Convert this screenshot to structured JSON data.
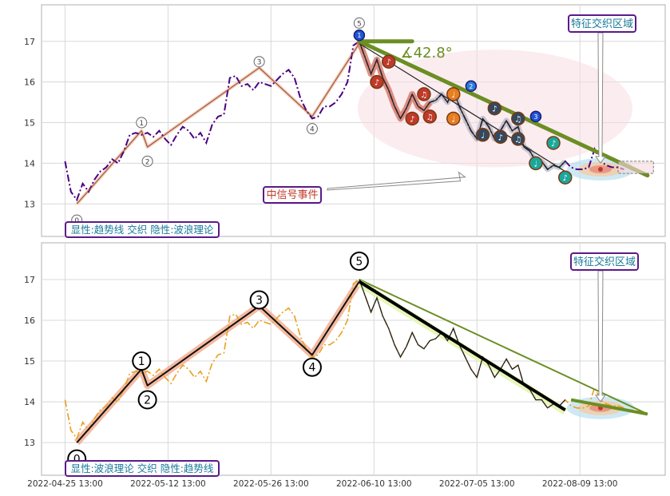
{
  "chart_data": [
    {
      "type": "line",
      "panel": "top",
      "ylim": [
        12.2,
        17.9
      ],
      "y_ticks": [
        13,
        14,
        15,
        16,
        17
      ],
      "grid": true,
      "price_series": {
        "style": "dash-dot",
        "color": "#4b0082",
        "points": [
          [
            0,
            14.05
          ],
          [
            1,
            13.3
          ],
          [
            2,
            13.1
          ],
          [
            3,
            13.5
          ],
          [
            4,
            13.3
          ],
          [
            5,
            13.6
          ],
          [
            6,
            13.8
          ],
          [
            7,
            13.9
          ],
          [
            8,
            14.1
          ],
          [
            9,
            14.0
          ],
          [
            10,
            14.3
          ],
          [
            11,
            14.7
          ],
          [
            12,
            14.75
          ],
          [
            13,
            14.7
          ],
          [
            14,
            14.75
          ],
          [
            15,
            14.65
          ],
          [
            16,
            14.8
          ],
          [
            17,
            14.6
          ],
          [
            18,
            14.45
          ],
          [
            19,
            14.7
          ],
          [
            20,
            14.9
          ],
          [
            21,
            14.8
          ],
          [
            22,
            14.6
          ],
          [
            23,
            14.75
          ],
          [
            24,
            14.5
          ],
          [
            25,
            14.95
          ],
          [
            26,
            15.15
          ],
          [
            27,
            15.2
          ],
          [
            28,
            16.1
          ],
          [
            29,
            16.15
          ],
          [
            30,
            15.9
          ],
          [
            31,
            15.95
          ],
          [
            32,
            15.8
          ],
          [
            33,
            16.0
          ],
          [
            34,
            15.95
          ],
          [
            35,
            15.9
          ],
          [
            36,
            16.05
          ],
          [
            37,
            16.2
          ],
          [
            38,
            16.3
          ],
          [
            39,
            16.1
          ],
          [
            40,
            15.6
          ],
          [
            41,
            15.3
          ],
          [
            42,
            15.1
          ],
          [
            43,
            15.15
          ],
          [
            44,
            15.4
          ],
          [
            45,
            15.4
          ],
          [
            46,
            15.5
          ],
          [
            47,
            15.7
          ],
          [
            48,
            16.0
          ],
          [
            49,
            16.9
          ],
          [
            50,
            17.0
          ],
          [
            51,
            16.6
          ],
          [
            52,
            16.2
          ],
          [
            53,
            16.55
          ],
          [
            54,
            16.1
          ],
          [
            55,
            15.8
          ],
          [
            56,
            15.4
          ],
          [
            57,
            15.1
          ],
          [
            58,
            15.35
          ],
          [
            59,
            15.7
          ],
          [
            60,
            15.4
          ],
          [
            61,
            15.3
          ],
          [
            62,
            15.5
          ],
          [
            63,
            15.55
          ],
          [
            64,
            15.7
          ],
          [
            65,
            15.5
          ],
          [
            66,
            15.8
          ],
          [
            67,
            15.4
          ],
          [
            68,
            15.1
          ],
          [
            69,
            14.8
          ],
          [
            70,
            14.6
          ],
          [
            71,
            15.1
          ],
          [
            72,
            14.9
          ],
          [
            73,
            14.6
          ],
          [
            74,
            14.8
          ],
          [
            75,
            15.05
          ],
          [
            76,
            14.8
          ],
          [
            77,
            14.9
          ],
          [
            78,
            14.4
          ],
          [
            79,
            14.3
          ],
          [
            80,
            14.05
          ],
          [
            81,
            14.05
          ],
          [
            82,
            13.85
          ],
          [
            83,
            13.95
          ],
          [
            84,
            13.9
          ],
          [
            85,
            14.05
          ],
          [
            86,
            13.9
          ],
          [
            87,
            13.85
          ],
          [
            88,
            13.85
          ],
          [
            89,
            13.9
          ],
          [
            90,
            14.35
          ],
          [
            91,
            14.05
          ],
          [
            92,
            13.95
          ],
          [
            93,
            13.9
          ],
          [
            94,
            13.9
          ],
          [
            95,
            13.85
          ]
        ]
      },
      "wave_line": {
        "color": "#e8a07a",
        "points": [
          [
            2,
            13.0
          ],
          [
            13,
            14.8
          ],
          [
            14,
            14.4
          ],
          [
            33,
            16.35
          ],
          [
            42,
            15.15
          ],
          [
            50,
            16.95
          ]
        ]
      },
      "wave_labels": [
        {
          "x": 2,
          "y": 12.6,
          "label": "0"
        },
        {
          "x": 13,
          "y": 15.0,
          "label": "1"
        },
        {
          "x": 14,
          "y": 14.05,
          "label": "2"
        },
        {
          "x": 33,
          "y": 16.5,
          "label": "3"
        },
        {
          "x": 42,
          "y": 14.85,
          "label": "4"
        },
        {
          "x": 50,
          "y": 17.45,
          "label": "5"
        }
      ],
      "trend_line_upper": {
        "color": "#6b8e23",
        "points": [
          [
            50,
            17.0
          ],
          [
            99,
            13.7
          ]
        ]
      },
      "horizontal_segment": {
        "color": "#6b8e23",
        "points": [
          [
            50,
            17.0
          ],
          [
            59,
            17.0
          ]
        ]
      },
      "angle_label": "∡42.8°",
      "trend_line_lower": {
        "points": [
          [
            50,
            16.95
          ],
          [
            85,
            13.8
          ]
        ]
      },
      "note_markers": [
        {
          "x": 50,
          "y": 17.15,
          "color": "#1f55d6",
          "symbol": "1"
        },
        {
          "x": 53,
          "y": 16.0,
          "color": "#c0392b",
          "symbol": "♪"
        },
        {
          "x": 55,
          "y": 16.5,
          "color": "#c0392b",
          "symbol": "♪"
        },
        {
          "x": 59,
          "y": 15.1,
          "color": "#c0392b",
          "symbol": "♪"
        },
        {
          "x": 61,
          "y": 15.7,
          "color": "#c0392b",
          "symbol": "♫"
        },
        {
          "x": 62,
          "y": 15.15,
          "color": "#c0392b",
          "symbol": "♫"
        },
        {
          "x": 66,
          "y": 15.7,
          "color": "#e67e22",
          "symbol": "♩"
        },
        {
          "x": 66,
          "y": 15.1,
          "color": "#e67e22",
          "symbol": "♩"
        },
        {
          "x": 69,
          "y": 15.9,
          "color": "#2a7ad8",
          "symbol": "2"
        },
        {
          "x": 71,
          "y": 14.7,
          "color": "#34495e",
          "symbol": "♩"
        },
        {
          "x": 73,
          "y": 15.35,
          "color": "#34495e",
          "symbol": "♪"
        },
        {
          "x": 74,
          "y": 14.65,
          "color": "#34495e",
          "symbol": "♪"
        },
        {
          "x": 77,
          "y": 15.1,
          "color": "#34495e",
          "symbol": "♫"
        },
        {
          "x": 77,
          "y": 14.6,
          "color": "#34495e",
          "symbol": "♫"
        },
        {
          "x": 80,
          "y": 15.15,
          "color": "#1f55d6",
          "symbol": "3"
        },
        {
          "x": 80,
          "y": 14.0,
          "color": "#1aa89c",
          "symbol": "♩"
        },
        {
          "x": 83,
          "y": 14.5,
          "color": "#1aa89c",
          "symbol": "♪"
        },
        {
          "x": 85,
          "y": 13.65,
          "color": "#1aa89c",
          "symbol": "♪"
        }
      ],
      "zone_box": {
        "x0": 94,
        "x1": 100,
        "y0": 13.75,
        "y1": 14.05
      },
      "feature_target": {
        "x": 91,
        "y": 13.85
      },
      "label_bottom": "显性:趋势线 交织 隐性:波浪理论",
      "label_feature": "特征交织区域",
      "label_signal": "中信号事件"
    },
    {
      "type": "line",
      "panel": "bottom",
      "ylim": [
        12.2,
        17.9
      ],
      "y_ticks": [
        13,
        14,
        15,
        16,
        17
      ],
      "grid": true,
      "price_series": {
        "style": "dash-dot",
        "color": "#e8a020",
        "points": [
          [
            0,
            14.05
          ],
          [
            1,
            13.3
          ],
          [
            2,
            13.1
          ],
          [
            3,
            13.5
          ],
          [
            4,
            13.3
          ],
          [
            5,
            13.6
          ],
          [
            6,
            13.8
          ],
          [
            7,
            13.9
          ],
          [
            8,
            14.1
          ],
          [
            9,
            14.0
          ],
          [
            10,
            14.3
          ],
          [
            11,
            14.7
          ],
          [
            12,
            14.75
          ],
          [
            13,
            14.7
          ],
          [
            14,
            14.75
          ],
          [
            15,
            14.65
          ],
          [
            16,
            14.8
          ],
          [
            17,
            14.6
          ],
          [
            18,
            14.45
          ],
          [
            19,
            14.7
          ],
          [
            20,
            14.9
          ],
          [
            21,
            14.8
          ],
          [
            22,
            14.6
          ],
          [
            23,
            14.75
          ],
          [
            24,
            14.5
          ],
          [
            25,
            14.95
          ],
          [
            26,
            15.15
          ],
          [
            27,
            15.2
          ],
          [
            28,
            16.1
          ],
          [
            29,
            16.15
          ],
          [
            30,
            15.9
          ],
          [
            31,
            15.95
          ],
          [
            32,
            15.8
          ],
          [
            33,
            16.0
          ],
          [
            34,
            15.95
          ],
          [
            35,
            15.9
          ],
          [
            36,
            16.05
          ],
          [
            37,
            16.2
          ],
          [
            38,
            16.3
          ],
          [
            39,
            16.1
          ],
          [
            40,
            15.6
          ],
          [
            41,
            15.3
          ],
          [
            42,
            15.1
          ],
          [
            43,
            15.15
          ],
          [
            44,
            15.4
          ],
          [
            45,
            15.4
          ],
          [
            46,
            15.5
          ],
          [
            47,
            15.7
          ],
          [
            48,
            16.0
          ],
          [
            49,
            16.9
          ],
          [
            50,
            17.0
          ],
          [
            51,
            16.6
          ],
          [
            52,
            16.2
          ],
          [
            53,
            16.55
          ],
          [
            54,
            16.1
          ],
          [
            55,
            15.8
          ],
          [
            56,
            15.4
          ],
          [
            57,
            15.1
          ],
          [
            58,
            15.35
          ],
          [
            59,
            15.7
          ],
          [
            60,
            15.4
          ],
          [
            61,
            15.3
          ],
          [
            62,
            15.5
          ],
          [
            63,
            15.55
          ],
          [
            64,
            15.7
          ],
          [
            65,
            15.5
          ],
          [
            66,
            15.8
          ],
          [
            67,
            15.4
          ],
          [
            68,
            15.1
          ],
          [
            69,
            14.8
          ],
          [
            70,
            14.6
          ],
          [
            71,
            15.1
          ],
          [
            72,
            14.9
          ],
          [
            73,
            14.6
          ],
          [
            74,
            14.8
          ],
          [
            75,
            15.05
          ],
          [
            76,
            14.8
          ],
          [
            77,
            14.9
          ],
          [
            78,
            14.4
          ],
          [
            79,
            14.3
          ],
          [
            80,
            14.05
          ],
          [
            81,
            14.05
          ],
          [
            82,
            13.85
          ],
          [
            83,
            13.95
          ],
          [
            84,
            13.9
          ],
          [
            85,
            14.05
          ],
          [
            86,
            13.9
          ],
          [
            87,
            13.85
          ],
          [
            88,
            13.85
          ],
          [
            89,
            13.9
          ],
          [
            90,
            14.35
          ],
          [
            91,
            14.05
          ],
          [
            92,
            13.95
          ],
          [
            93,
            13.9
          ],
          [
            94,
            13.9
          ],
          [
            95,
            13.85
          ]
        ]
      },
      "wave_line": {
        "color": "#e8724a",
        "points": [
          [
            2,
            13.0
          ],
          [
            13,
            14.8
          ],
          [
            14,
            14.4
          ],
          [
            33,
            16.35
          ],
          [
            42,
            15.15
          ],
          [
            50,
            16.95
          ]
        ]
      },
      "wave_labels": [
        {
          "x": 2,
          "y": 12.6,
          "label": "0"
        },
        {
          "x": 13,
          "y": 15.0,
          "label": "1"
        },
        {
          "x": 14,
          "y": 14.05,
          "label": "2"
        },
        {
          "x": 33,
          "y": 16.5,
          "label": "3"
        },
        {
          "x": 42,
          "y": 14.85,
          "label": "4"
        },
        {
          "x": 50,
          "y": 17.45,
          "label": "5"
        }
      ],
      "trend_line_upper": {
        "color": "#6b8e23",
        "points": [
          [
            50,
            17.0
          ],
          [
            99,
            13.7
          ]
        ]
      },
      "trend_line_lower": {
        "color": "#000000",
        "points": [
          [
            50,
            16.95
          ],
          [
            85,
            13.8
          ]
        ]
      },
      "feature_target": {
        "x": 91,
        "y": 13.85
      },
      "label_bottom": "显性:波浪理论 交织 隐性:趋势线",
      "label_feature": "特征交织区域"
    }
  ],
  "x_axis": {
    "tick_labels": [
      "2022-04-25 13:00",
      "2022-05-12 13:00",
      "2022-05-26 13:00",
      "2022-06-10 13:00",
      "2022-07-05 13:00",
      "2022-08-09 13:00"
    ],
    "tick_positions": [
      0,
      17.5,
      35,
      52.5,
      70,
      87.5
    ],
    "range": [
      -4,
      102
    ]
  }
}
